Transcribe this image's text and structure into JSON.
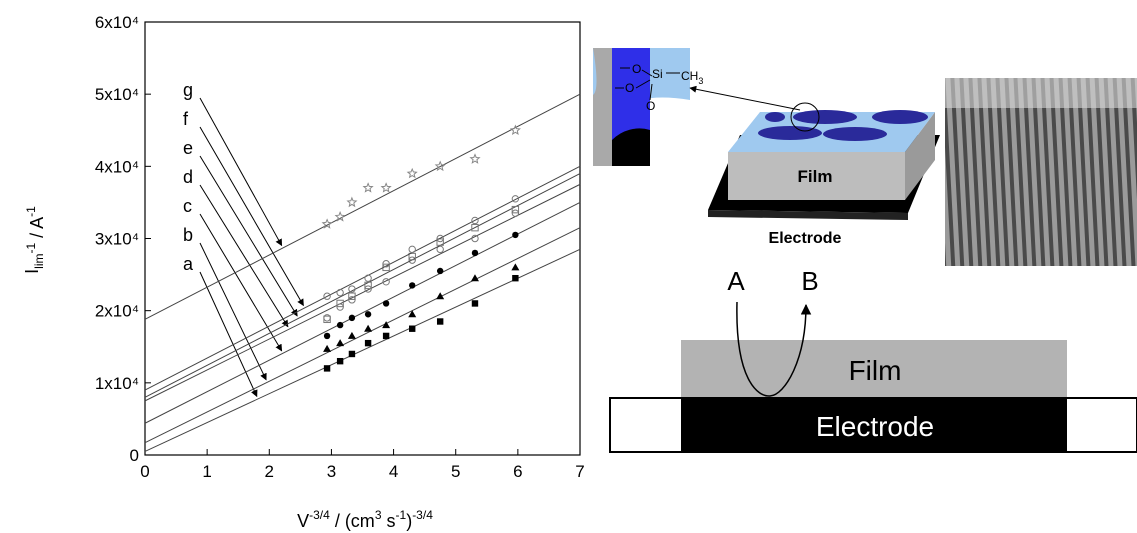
{
  "chart_data": {
    "type": "scatter",
    "x_label": [
      {
        "text": "V"
      },
      {
        "text": "-3/4",
        "sup": true
      },
      {
        "text": " / (cm"
      },
      {
        "text": "3",
        "sup": true
      },
      {
        "text": " s"
      },
      {
        "text": "-1",
        "sup": true
      },
      {
        "text": ")"
      },
      {
        "text": "-3/4",
        "sup": true
      }
    ],
    "y_label": [
      {
        "text": "I"
      },
      {
        "text": "lim",
        "sub": true
      },
      {
        "text": "-1",
        "sup": true
      },
      {
        "text": " / A"
      },
      {
        "text": "-1",
        "sup": true
      }
    ],
    "xlim": [
      0,
      7
    ],
    "xticks": [
      0,
      1,
      2,
      3,
      4,
      5,
      6,
      7
    ],
    "ylim": [
      0,
      60000
    ],
    "yticks": [
      0,
      {
        "value": 10000,
        "label": "1x10⁴"
      },
      {
        "value": 20000,
        "label": "2x10⁴"
      },
      {
        "value": 30000,
        "label": "3x10⁴"
      },
      {
        "value": 40000,
        "label": "4x10⁴"
      },
      {
        "value": 50000,
        "label": "5x10⁴"
      },
      {
        "value": 60000,
        "label": "6x10⁴"
      }
    ],
    "x": [
      2.93,
      3.14,
      3.33,
      3.59,
      3.88,
      4.3,
      4.75,
      5.31,
      5.96
    ],
    "fit_x": [
      0,
      7
    ],
    "series": [
      {
        "name": "a",
        "marker": "square",
        "color": "#000",
        "values": [
          12000,
          13000,
          14000,
          15500,
          16500,
          17500,
          18500,
          21000,
          24500
        ],
        "fit_values": [
          500,
          28500
        ]
      },
      {
        "name": "b",
        "marker": "triangle",
        "color": "#000",
        "values": [
          14700,
          15500,
          16500,
          17500,
          18000,
          19500,
          22000,
          24500,
          26000
        ],
        "fit_values": [
          1700,
          31500
        ]
      },
      {
        "name": "c",
        "marker": "circle",
        "color": "#000",
        "values": [
          16500,
          18000,
          19000,
          19500,
          21000,
          23500,
          25500,
          28000,
          30500
        ],
        "fit_values": [
          4400,
          35000
        ]
      },
      {
        "name": "d",
        "marker": "open-circle",
        "color": "#777",
        "values": [
          19000,
          20500,
          21500,
          23000,
          24000,
          27000,
          28500,
          30000,
          33500
        ],
        "fit_values": [
          7500,
          37500
        ]
      },
      {
        "name": "e",
        "marker": "open-square",
        "color": "#777",
        "values": [
          18800,
          21000,
          22000,
          23500,
          26000,
          27500,
          29500,
          31500,
          34000
        ],
        "fit_values": [
          8000,
          39000
        ]
      },
      {
        "name": "f",
        "marker": "open-circle",
        "color": "#777",
        "values": [
          22000,
          22500,
          23000,
          24500,
          26500,
          28500,
          30000,
          32500,
          35500
        ],
        "fit_values": [
          9000,
          40000
        ]
      },
      {
        "name": "g",
        "marker": "star",
        "color": "#888",
        "values": [
          32000,
          33000,
          35000,
          37000,
          37000,
          39000,
          40000,
          41000,
          45000
        ],
        "fit_values": [
          18800,
          50000
        ]
      }
    ]
  },
  "diagram": {
    "o1": "O",
    "o2": "O",
    "o3": "O",
    "si": "Si",
    "ch": "CH",
    "ch_sub": "3",
    "film_3d": "Film",
    "electrode_3d": "Electrode",
    "a": "A",
    "b": "B",
    "film": "Film",
    "electrode": "Electrode"
  }
}
